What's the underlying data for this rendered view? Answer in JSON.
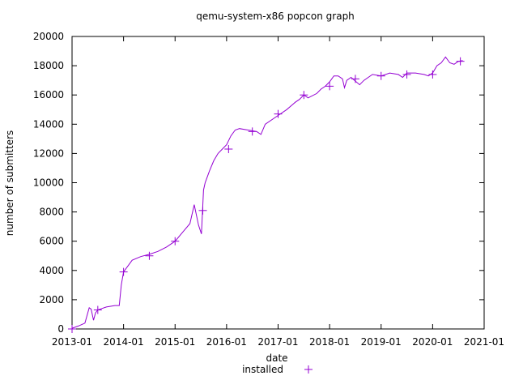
{
  "chart_data": {
    "type": "line",
    "title": "qemu-system-x86 popcon graph",
    "xlabel": "date",
    "ylabel": "number of submitters",
    "xlim": [
      "2013-01",
      "2021-01"
    ],
    "ylim": [
      0,
      20000
    ],
    "x_ticks": [
      "2013-01",
      "2014-01",
      "2015-01",
      "2016-01",
      "2017-01",
      "2018-01",
      "2019-01",
      "2020-01",
      "2021-01"
    ],
    "y_ticks": [
      "0",
      "2000",
      "4000",
      "6000",
      "8000",
      "10000",
      "12000",
      "14000",
      "16000",
      "18000",
      "20000"
    ],
    "legend_position": "bottom-center",
    "grid": false,
    "colors": {
      "series": "#9400d3",
      "axes": "#000000"
    },
    "series": [
      {
        "name": "installed",
        "x": [
          "2013-01-01",
          "2013-02-15",
          "2013-04-01",
          "2013-05-01",
          "2013-05-15",
          "2013-06-01",
          "2013-06-15",
          "2013-07-01",
          "2013-08-01",
          "2013-09-01",
          "2013-10-01",
          "2013-11-01",
          "2013-12-01",
          "2013-12-15",
          "2014-01-01",
          "2014-02-01",
          "2014-03-01",
          "2014-05-01",
          "2014-07-01",
          "2014-09-01",
          "2014-11-01",
          "2015-01-01",
          "2015-03-01",
          "2015-04-15",
          "2015-05-15",
          "2015-06-15",
          "2015-07-05",
          "2015-07-20",
          "2015-08-01",
          "2015-09-01",
          "2015-10-01",
          "2015-11-01",
          "2015-12-01",
          "2016-01-01",
          "2016-02-01",
          "2016-03-01",
          "2016-04-01",
          "2016-06-01",
          "2016-08-01",
          "2016-09-01",
          "2016-10-01",
          "2017-01-01",
          "2017-03-01",
          "2017-05-01",
          "2017-06-01",
          "2017-07-01",
          "2017-08-01",
          "2017-10-01",
          "2017-11-01",
          "2017-12-01",
          "2018-01-01",
          "2018-02-01",
          "2018-03-01",
          "2018-04-01",
          "2018-04-15",
          "2018-05-01",
          "2018-06-01",
          "2018-08-01",
          "2018-09-01",
          "2018-11-01",
          "2019-01-01",
          "2019-03-01",
          "2019-05-01",
          "2019-06-01",
          "2019-07-01",
          "2019-09-01",
          "2019-11-01",
          "2019-12-01",
          "2020-01-01",
          "2020-02-01",
          "2020-03-01",
          "2020-04-01",
          "2020-05-01",
          "2020-06-01",
          "2020-07-01",
          "2020-08-01"
        ],
        "values": [
          50,
          200,
          400,
          1450,
          1350,
          600,
          1100,
          1300,
          1400,
          1500,
          1550,
          1600,
          1600,
          3000,
          3900,
          4300,
          4700,
          4950,
          5100,
          5300,
          5600,
          6000,
          6700,
          7200,
          8500,
          7100,
          6500,
          9500,
          10000,
          10800,
          11500,
          12000,
          12300,
          12600,
          13200,
          13600,
          13700,
          13600,
          13500,
          13300,
          14000,
          14600,
          15000,
          15500,
          15700,
          16000,
          15800,
          16100,
          16400,
          16600,
          16900,
          17300,
          17300,
          17100,
          16500,
          17000,
          17200,
          16700,
          17000,
          17400,
          17300,
          17500,
          17400,
          17200,
          17500,
          17500,
          17400,
          17300,
          17500,
          18000,
          18200,
          18600,
          18200,
          18100,
          18300,
          18350
        ]
      }
    ],
    "markers": {
      "x": [
        "2013-01-01",
        "2013-07-01",
        "2014-01-01",
        "2014-07-01",
        "2015-01-01",
        "2015-07-15",
        "2016-01-15",
        "2016-07-01",
        "2017-01-01",
        "2017-07-01",
        "2018-01-01",
        "2018-07-01",
        "2019-01-01",
        "2019-07-01",
        "2020-01-01",
        "2020-07-15"
      ],
      "values": [
        0,
        1300,
        3900,
        5000,
        6000,
        8100,
        12300,
        13500,
        14700,
        16000,
        16600,
        17100,
        17300,
        17400,
        17400,
        18300
      ]
    }
  }
}
